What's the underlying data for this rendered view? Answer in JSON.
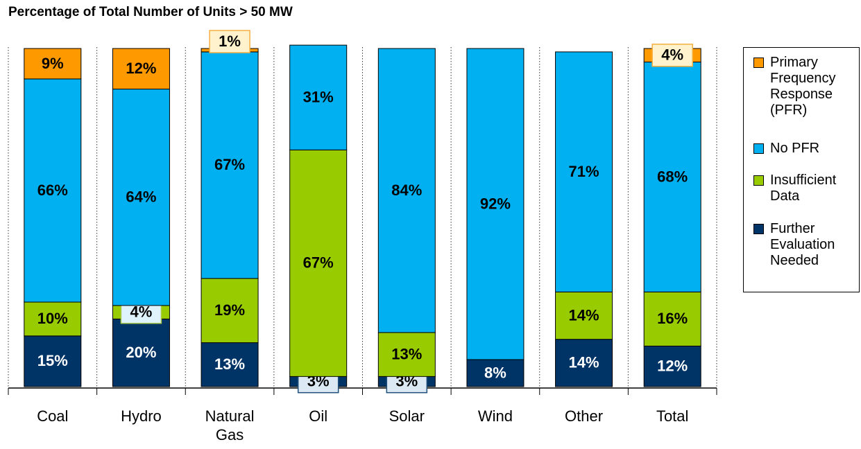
{
  "chart_data": {
    "type": "stacked_bar",
    "title": "Percentage of Total Number of Units > 50 MW",
    "categories": [
      "Coal",
      "Hydro",
      "Natural Gas",
      "Oil",
      "Solar",
      "Wind",
      "Other",
      "Total"
    ],
    "series": [
      {
        "name": "Further Evaluation Needed",
        "color": "#003366",
        "values": [
          15,
          20,
          13,
          3,
          3,
          8,
          14,
          12
        ],
        "value_labels": [
          "15%",
          "20%",
          "13%",
          "3%",
          "3%",
          "8%",
          "14%",
          "12%"
        ]
      },
      {
        "name": "Insufficient Data",
        "color": "#99cc00",
        "values": [
          10,
          4,
          19,
          67,
          13,
          null,
          14,
          16
        ],
        "value_labels": [
          "10%",
          "4%",
          "19%",
          "67%",
          "13%",
          null,
          "14%",
          "16%"
        ]
      },
      {
        "name": "No PFR",
        "color": "#00b0f0",
        "values": [
          66,
          64,
          67,
          31,
          84,
          92,
          71,
          68
        ],
        "value_labels": [
          "66%",
          "64%",
          "67%",
          "31%",
          "84%",
          "92%",
          "71%",
          "68%"
        ]
      },
      {
        "name": "Primary Frequency Response (PFR)",
        "color": "#ff9900",
        "values": [
          9,
          12,
          1,
          null,
          null,
          null,
          null,
          4
        ],
        "value_labels": [
          "9%",
          "12%",
          "1%",
          null,
          null,
          null,
          null,
          "4%"
        ]
      }
    ],
    "ylim": [
      0,
      100
    ]
  }
}
